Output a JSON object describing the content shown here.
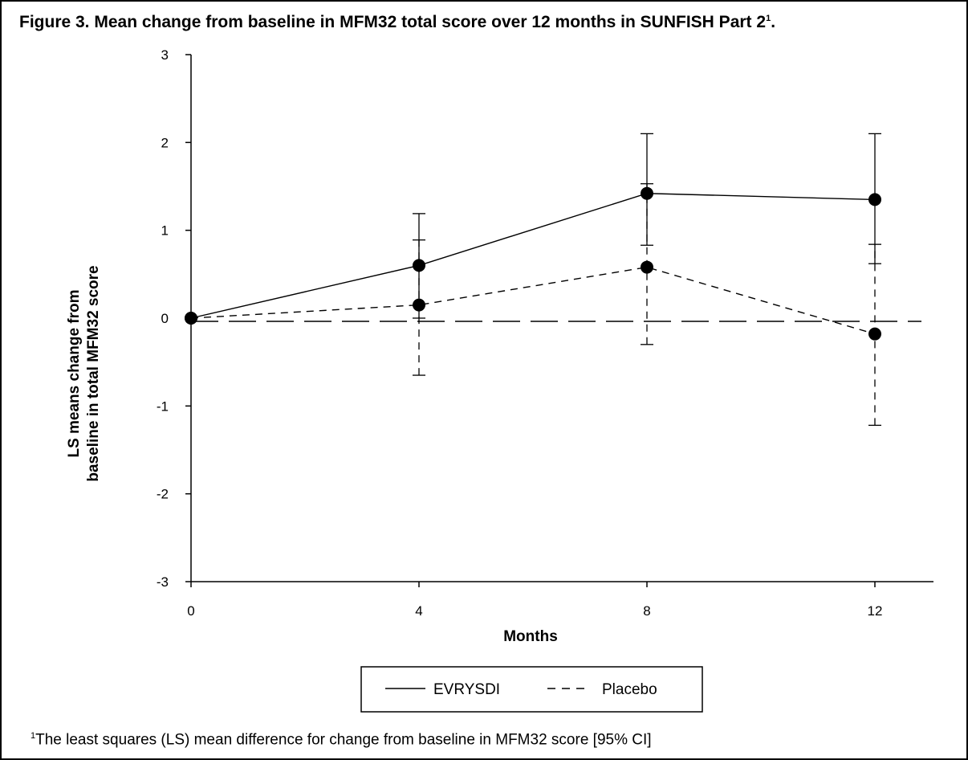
{
  "title": "Figure 3. Mean change from baseline in MFM32 total score over 12 months in SUNFISH Part 2",
  "title_sup": "1",
  "title_end": ".",
  "footnote_sup": "1",
  "footnote": "The least squares (LS) mean difference for change from baseline in MFM32 score [95% CI]",
  "chart_data": {
    "type": "line",
    "xlabel": "Months",
    "ylabel_lines": [
      "LS means change from",
      "baseline in total MFM32 score"
    ],
    "x_ticks": [
      0,
      4,
      8,
      12
    ],
    "y_ticks": [
      3,
      2,
      1,
      0,
      -1,
      -2,
      -3
    ],
    "xlim": [
      0,
      13
    ],
    "ylim": [
      -3,
      3
    ],
    "reference_line_y": 0,
    "legend_position": "bottom-center",
    "series": [
      {
        "name": "EVRYSDI",
        "style": "solid",
        "x": [
          0,
          4,
          8,
          12
        ],
        "y": [
          0,
          0.6,
          1.42,
          1.35
        ],
        "ci_low": [
          0,
          0.0,
          0.83,
          0.62
        ],
        "ci_high": [
          0,
          1.19,
          2.1,
          2.1
        ]
      },
      {
        "name": "Placebo",
        "style": "dashed",
        "x": [
          0,
          4,
          8,
          12
        ],
        "y": [
          0,
          0.15,
          0.58,
          -0.18
        ],
        "ci_low": [
          0,
          -0.65,
          -0.3,
          -1.22
        ],
        "ci_high": [
          0,
          0.89,
          1.53,
          0.84
        ]
      }
    ]
  }
}
